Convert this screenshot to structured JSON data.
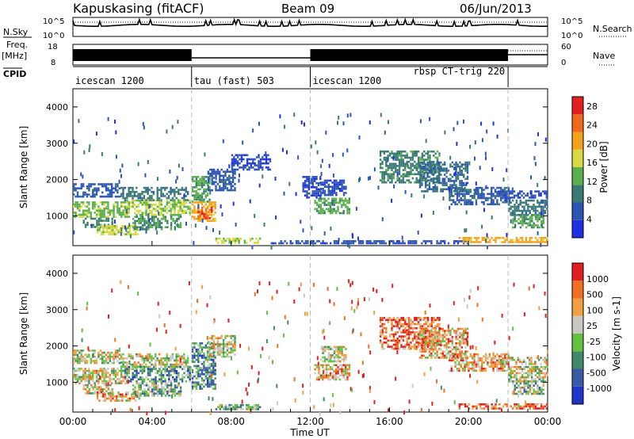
{
  "header": {
    "radar_title": "Kapuskasing (fitACF)",
    "beam": "Beam 09",
    "date": "06/Jun/2013"
  },
  "status_panels": {
    "nsky_label": "N.Sky",
    "nsky_ticks": [
      "10^5",
      "10^0"
    ],
    "nsearch_label": "N.Search",
    "nsearch_ticks": [
      "10^5",
      "10^0"
    ],
    "freq_label": "Freq.",
    "freq_unit": "[MHz]",
    "freq_ticks": [
      "18",
      "8"
    ],
    "nave_label": "Nave",
    "nave_ticks": [
      "60",
      "0"
    ],
    "cpid_label": "CPID",
    "cpid_segments": [
      {
        "start": 0,
        "end": 6,
        "label": "icescan 1200",
        "label_pos": "left"
      },
      {
        "start": 6,
        "end": 12,
        "label": "tau (fast) 503",
        "label_pos": "left"
      },
      {
        "start": 12,
        "end": 22,
        "label": "icescan 1200",
        "label_pos": "left",
        "extra_label": "rbsp CT-trig 220"
      },
      {
        "start": 22,
        "end": 24,
        "label": "",
        "label_pos": "left"
      }
    ]
  },
  "x_axis": {
    "title": "Time UT",
    "tick_labels": [
      "00:00",
      "04:00",
      "08:00",
      "12:00",
      "16:00",
      "20:00",
      "00:00"
    ],
    "tick_hours": [
      0,
      4,
      8,
      12,
      16,
      20,
      24
    ],
    "range_hours": [
      0,
      24
    ]
  },
  "chart_data": [
    {
      "type": "heatmap",
      "title": "",
      "xlabel": "",
      "ylabel": "Slant Range [km]",
      "ylim": [
        180,
        4500
      ],
      "y_ticks": [
        1000,
        2000,
        3000,
        4000
      ],
      "x_range_hours": [
        0,
        24
      ],
      "grid": "vertical dashed at 06:00, 12:00, 22:00",
      "colorbar": {
        "label": "Power [dB]",
        "tick_labels": [
          "4",
          "8",
          "12",
          "16",
          "20",
          "24",
          "28"
        ],
        "range": [
          0,
          30
        ],
        "colors": [
          "#2030e0",
          "#2d55b4",
          "#3a7a73",
          "#5ab04a",
          "#d8d840",
          "#f3a21d",
          "#f06a1d",
          "#e32020"
        ]
      },
      "regions": [
        {
          "h0": 0.0,
          "h1": 2.4,
          "r0": 1550,
          "r1": 1900,
          "value": 6
        },
        {
          "h0": 0.0,
          "h1": 2.8,
          "r0": 950,
          "r1": 1400,
          "value": 14
        },
        {
          "h0": 0.5,
          "h1": 2.0,
          "r0": 700,
          "r1": 950,
          "value": 10
        },
        {
          "h0": 1.2,
          "h1": 3.4,
          "r0": 500,
          "r1": 750,
          "value": 16
        },
        {
          "h0": 2.4,
          "h1": 5.8,
          "r0": 1450,
          "r1": 1800,
          "value": 9
        },
        {
          "h0": 2.6,
          "h1": 5.9,
          "r0": 1000,
          "r1": 1450,
          "value": 15
        },
        {
          "h0": 3.0,
          "h1": 5.5,
          "r0": 650,
          "r1": 1000,
          "value": 11
        },
        {
          "h0": 6.0,
          "h1": 6.9,
          "r0": 1400,
          "r1": 2100,
          "value": 12
        },
        {
          "h0": 6.0,
          "h1": 7.2,
          "r0": 850,
          "r1": 1400,
          "value": 20
        },
        {
          "h0": 6.3,
          "h1": 7.0,
          "r0": 950,
          "r1": 1250,
          "value": 26
        },
        {
          "h0": 6.8,
          "h1": 8.2,
          "r0": 1700,
          "r1": 2300,
          "value": 6
        },
        {
          "h0": 7.2,
          "h1": 9.5,
          "r0": 250,
          "r1": 400,
          "value": 16
        },
        {
          "h0": 8.0,
          "h1": 10.0,
          "r0": 2300,
          "r1": 2700,
          "value": 4
        },
        {
          "h0": 11.6,
          "h1": 12.5,
          "r0": 1500,
          "r1": 2100,
          "value": 4
        },
        {
          "h0": 12.2,
          "h1": 14.0,
          "r0": 1050,
          "r1": 1500,
          "value": 12
        },
        {
          "h0": 12.5,
          "h1": 13.8,
          "r0": 1550,
          "r1": 2000,
          "value": 5
        },
        {
          "h0": 10.0,
          "h1": 20.0,
          "r0": 230,
          "r1": 330,
          "value": 5
        },
        {
          "h0": 15.5,
          "h1": 18.5,
          "r0": 1900,
          "r1": 2800,
          "value": 10
        },
        {
          "h0": 17.5,
          "h1": 20.0,
          "r0": 1700,
          "r1": 2500,
          "value": 8
        },
        {
          "h0": 19.0,
          "h1": 22.0,
          "r0": 1300,
          "r1": 1800,
          "value": 7
        },
        {
          "h0": 21.5,
          "h1": 24.0,
          "r0": 1500,
          "r1": 1700,
          "value": 5
        },
        {
          "h0": 22.0,
          "h1": 24.0,
          "r0": 1050,
          "r1": 1450,
          "value": 9
        },
        {
          "h0": 22.2,
          "h1": 23.8,
          "r0": 700,
          "r1": 1050,
          "value": 12
        },
        {
          "h0": 19.5,
          "h1": 24.0,
          "r0": 250,
          "r1": 420,
          "value": 20
        }
      ]
    },
    {
      "type": "heatmap",
      "title": "",
      "xlabel": "Time UT",
      "ylabel": "Slant Range [km]",
      "ylim": [
        180,
        4500
      ],
      "y_ticks": [
        1000,
        2000,
        3000,
        4000
      ],
      "x_range_hours": [
        0,
        24
      ],
      "grid": "vertical dashed at 06:00, 12:00, 22:00",
      "colorbar": {
        "label": "Velocity [m s-1]",
        "tick_labels": [
          "1000",
          "500",
          "100",
          "25",
          "-25",
          "-100",
          "-500",
          "-1000"
        ],
        "colors": [
          "#2034c8",
          "#3a5aa8",
          "#3e8a6a",
          "#62c040",
          "#c8c8c0",
          "#f0a040",
          "#f07020",
          "#e02020"
        ]
      },
      "regions": [
        {
          "h0": 0.0,
          "h1": 2.4,
          "r0": 1550,
          "r1": 1900,
          "value": 4
        },
        {
          "h0": 0.0,
          "h1": 2.8,
          "r0": 950,
          "r1": 1400,
          "value": 4
        },
        {
          "h0": 0.5,
          "h1": 2.0,
          "r0": 700,
          "r1": 950,
          "value": 4
        },
        {
          "h0": 1.2,
          "h1": 3.4,
          "r0": 500,
          "r1": 750,
          "value": 5
        },
        {
          "h0": 2.4,
          "h1": 5.8,
          "r0": 1450,
          "r1": 1800,
          "value": 4
        },
        {
          "h0": 2.6,
          "h1": 5.9,
          "r0": 1000,
          "r1": 1450,
          "value": 2
        },
        {
          "h0": 3.0,
          "h1": 5.5,
          "r0": 650,
          "r1": 1000,
          "value": 3
        },
        {
          "h0": 6.0,
          "h1": 7.2,
          "r0": 850,
          "r1": 2100,
          "value": 2
        },
        {
          "h0": 6.8,
          "h1": 8.2,
          "r0": 1700,
          "r1": 2300,
          "value": 4
        },
        {
          "h0": 7.2,
          "h1": 9.5,
          "r0": 250,
          "r1": 400,
          "value": 3
        },
        {
          "h0": 12.2,
          "h1": 14.0,
          "r0": 1050,
          "r1": 1500,
          "value": 5
        },
        {
          "h0": 12.5,
          "h1": 13.8,
          "r0": 1550,
          "r1": 2000,
          "value": 4
        },
        {
          "h0": 15.5,
          "h1": 18.5,
          "r0": 1900,
          "r1": 2800,
          "value": 6
        },
        {
          "h0": 17.5,
          "h1": 20.0,
          "r0": 1700,
          "r1": 2500,
          "value": 5
        },
        {
          "h0": 19.0,
          "h1": 22.0,
          "r0": 1300,
          "r1": 1800,
          "value": 5
        },
        {
          "h0": 21.5,
          "h1": 24.0,
          "r0": 1500,
          "r1": 1700,
          "value": 4
        },
        {
          "h0": 22.0,
          "h1": 24.0,
          "r0": 1050,
          "r1": 1450,
          "value": 4
        },
        {
          "h0": 22.2,
          "h1": 23.8,
          "r0": 700,
          "r1": 1050,
          "value": 3
        },
        {
          "h0": 19.5,
          "h1": 24.0,
          "r0": 250,
          "r1": 420,
          "value": 6
        }
      ]
    }
  ]
}
